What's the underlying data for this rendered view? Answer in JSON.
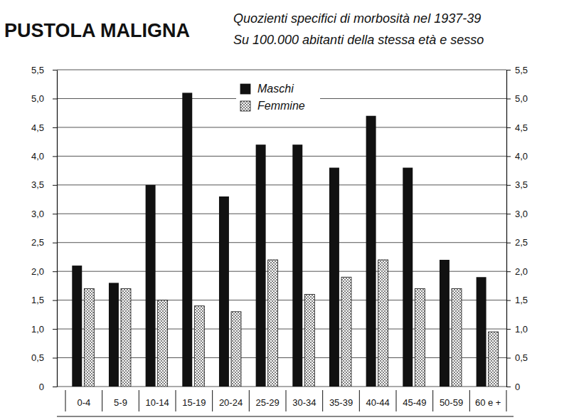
{
  "chart_data": {
    "type": "bar",
    "title": "PUSTOLA MALIGNA",
    "subtitle": [
      "Quozienti specifici di morbosità nel 1937-39",
      "Su 100.000 abitanti della stessa età e sesso"
    ],
    "categories": [
      "0-4",
      "5-9",
      "10-14",
      "15-19",
      "20-24",
      "25-29",
      "30-34",
      "35-39",
      "40-44",
      "45-49",
      "50-59",
      "60 e +"
    ],
    "series": [
      {
        "name": "Maschi",
        "color": "#111111",
        "values": [
          2.1,
          1.8,
          3.5,
          5.1,
          3.3,
          4.2,
          4.2,
          3.8,
          4.7,
          3.8,
          2.2,
          1.9
        ]
      },
      {
        "name": "Femmine",
        "color": "#444444",
        "marker": "dots",
        "values": [
          1.7,
          1.7,
          1.5,
          1.4,
          1.3,
          2.2,
          1.6,
          1.9,
          2.2,
          1.7,
          1.7,
          0.95
        ]
      }
    ],
    "ylim": [
      0,
      5.5
    ],
    "yticks": [
      0,
      {
        "value": 0.5,
        "label": "0,5"
      },
      {
        "value": 1.0,
        "label": "1,0"
      },
      {
        "value": 1.5,
        "label": "1,5"
      },
      {
        "value": 2.0,
        "label": "2,0"
      },
      {
        "value": 2.5,
        "label": "2,5"
      },
      {
        "value": 3.0,
        "label": "3,0"
      },
      {
        "value": 3.5,
        "label": "3,5"
      },
      {
        "value": 4.0,
        "label": "4,0"
      },
      {
        "value": 4.5,
        "label": "4,5"
      },
      {
        "value": 5.0,
        "label": "5,0"
      },
      {
        "value": 5.5,
        "label": "5,5"
      }
    ],
    "grid": true,
    "legend": "top"
  }
}
